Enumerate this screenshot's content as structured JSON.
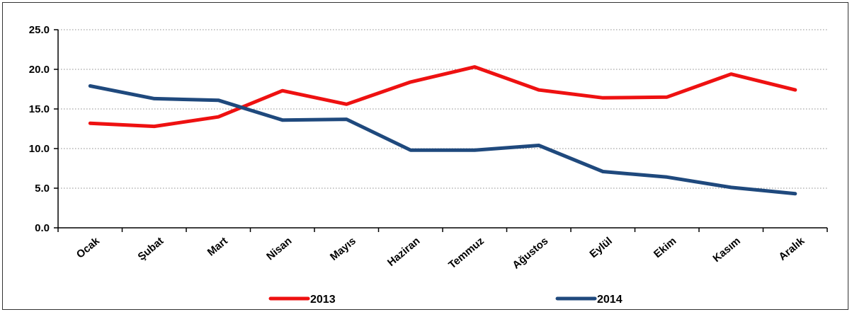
{
  "chart_data": {
    "type": "line",
    "categories": [
      "Ocak",
      "Şubat",
      "Mart",
      "Nisan",
      "Mayıs",
      "Haziran",
      "Temmuz",
      "Ağustos",
      "Eylül",
      "Ekim",
      "Kasım",
      "Aralık"
    ],
    "series": [
      {
        "name": "2013",
        "color": "#ee1111",
        "values": [
          13.2,
          12.8,
          14.0,
          17.3,
          15.6,
          18.4,
          20.3,
          17.4,
          16.4,
          16.5,
          19.4,
          17.4
        ]
      },
      {
        "name": "2014",
        "color": "#1f497d",
        "values": [
          17.9,
          16.3,
          16.1,
          13.6,
          13.7,
          9.8,
          9.8,
          10.4,
          7.1,
          6.4,
          5.1,
          4.3
        ]
      }
    ],
    "y_ticks": [
      "0.0",
      "5.0",
      "10.0",
      "15.0",
      "20.0",
      "25.0"
    ],
    "ylim": [
      0,
      25
    ],
    "grid": true,
    "legend_position": "bottom"
  }
}
